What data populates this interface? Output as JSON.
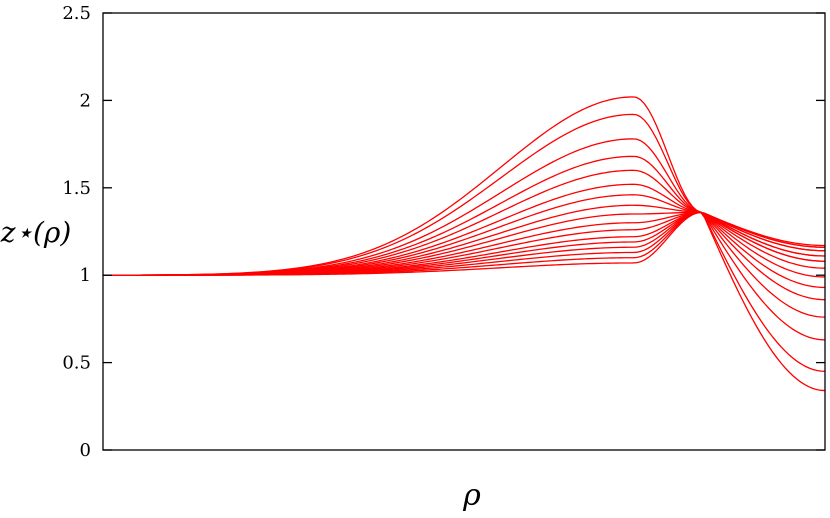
{
  "chart_data": {
    "type": "line",
    "title": "",
    "xlabel": "ρ",
    "ylabel": "z⋆(ρ)",
    "ylim": [
      0,
      2.5
    ],
    "xlim": [
      0,
      1
    ],
    "y_ticks": [
      "0",
      "0.5",
      "1",
      "1.5",
      "2",
      "2.5"
    ],
    "grid": false,
    "legend": "none",
    "line_color": "#ff0000",
    "series": [
      {
        "peak": 2.02,
        "end": 0.34
      },
      {
        "peak": 1.92,
        "end": 0.45
      },
      {
        "peak": 1.78,
        "end": 0.63
      },
      {
        "peak": 1.68,
        "end": 0.76
      },
      {
        "peak": 1.6,
        "end": 0.86
      },
      {
        "peak": 1.52,
        "end": 0.93
      },
      {
        "peak": 1.46,
        "end": 0.99
      },
      {
        "peak": 1.4,
        "end": 1.04
      },
      {
        "peak": 1.35,
        "end": 1.08
      },
      {
        "peak": 1.3,
        "end": 1.11
      },
      {
        "peak": 1.26,
        "end": 1.14
      },
      {
        "peak": 1.22,
        "end": 1.16
      },
      {
        "peak": 1.19,
        "end": 1.17
      },
      {
        "peak": 1.16,
        "end": 1.16
      },
      {
        "peak": 1.13,
        "end": 1.14
      },
      {
        "peak": 1.1,
        "end": 1.11
      },
      {
        "peak": 1.07,
        "end": 1.08
      }
    ]
  }
}
